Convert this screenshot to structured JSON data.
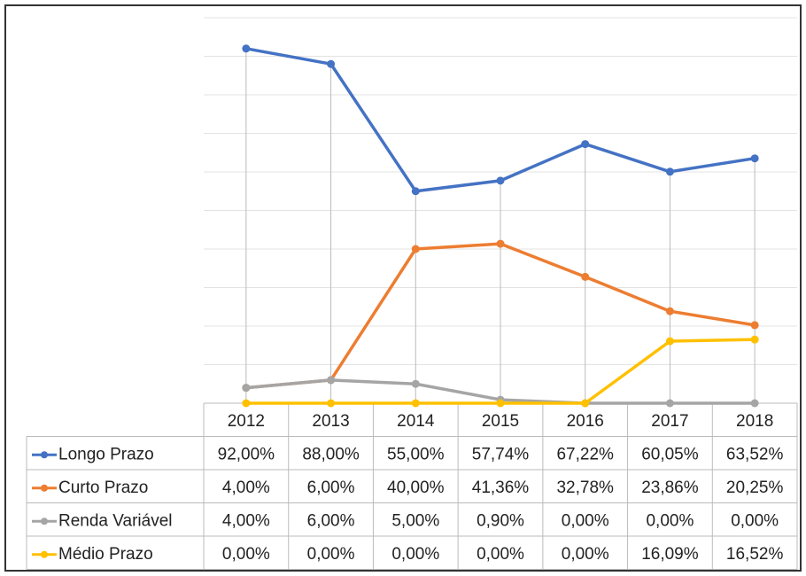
{
  "chart_data": {
    "type": "line",
    "categories": [
      "2012",
      "2013",
      "2014",
      "2015",
      "2016",
      "2017",
      "2018"
    ],
    "series": [
      {
        "name": "Longo Prazo",
        "color": "#4472c4",
        "values": [
          92,
          88,
          55,
          57.74,
          67.22,
          60.05,
          63.52
        ],
        "value_labels": [
          "92,00%",
          "88,00%",
          "55,00%",
          "57,74%",
          "67,22%",
          "60,05%",
          "63,52%"
        ]
      },
      {
        "name": "Curto Prazo",
        "color": "#ed7d31",
        "values": [
          4,
          6,
          40,
          41.36,
          32.78,
          23.86,
          20.25
        ],
        "value_labels": [
          "4,00%",
          "6,00%",
          "40,00%",
          "41,36%",
          "32,78%",
          "23,86%",
          "20,25%"
        ]
      },
      {
        "name": "Renda Variável",
        "color": "#a5a5a5",
        "values": [
          4,
          6,
          5,
          0.9,
          0,
          0,
          0
        ],
        "value_labels": [
          "4,00%",
          "6,00%",
          "5,00%",
          "0,90%",
          "0,00%",
          "0,00%",
          "0,00%"
        ]
      },
      {
        "name": "Médio Prazo",
        "color": "#ffc000",
        "values": [
          0,
          0,
          0,
          0,
          0,
          16.09,
          16.52
        ],
        "value_labels": [
          "0,00%",
          "0,00%",
          "0,00%",
          "0,00%",
          "0,00%",
          "16,09%",
          "16,52%"
        ]
      }
    ],
    "ylim": [
      0,
      100
    ],
    "yticks": [
      0,
      10,
      20,
      30,
      40,
      50,
      60,
      70,
      80,
      90,
      100
    ],
    "grid": true
  }
}
